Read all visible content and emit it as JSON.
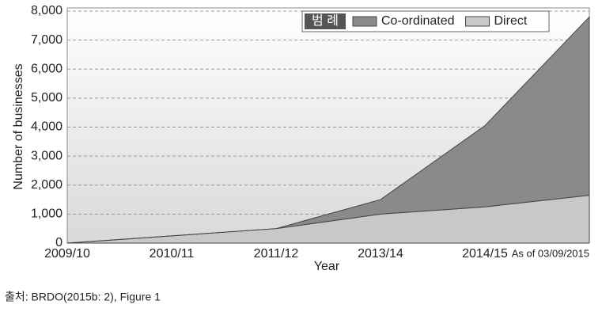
{
  "chart_data": {
    "type": "stacked_area",
    "x_label": "Year",
    "y_label": "Number of businesses",
    "categories": [
      "2009/10",
      "2010/11",
      "2011/12",
      "2013/14",
      "2014/15",
      "As of 03/09/2015"
    ],
    "series": [
      {
        "name": "Direct",
        "color": "#c8c8c8",
        "values": [
          0,
          250,
          500,
          1000,
          1250,
          1650
        ]
      },
      {
        "name": "Co-ordinated",
        "color": "#8a8a8a",
        "values": [
          0,
          0,
          0,
          500,
          2800,
          6150
        ]
      }
    ],
    "ylim": [
      0,
      8000
    ],
    "yticks": [
      0,
      {
        "value": 1000,
        "label": "1,000"
      },
      {
        "value": 2000,
        "label": "2,000"
      },
      {
        "value": 3000,
        "label": "3,000"
      },
      {
        "value": 4000,
        "label": "4,000"
      },
      {
        "value": 5000,
        "label": "5,000"
      },
      {
        "value": 6000,
        "label": "6,000"
      },
      {
        "value": 7000,
        "label": "7,000"
      },
      {
        "value": 8000,
        "label": "8,000"
      }
    ],
    "grid": true,
    "legend_title": "범 례",
    "source": "출처: BRDO(2015b: 2), Figure 1"
  }
}
